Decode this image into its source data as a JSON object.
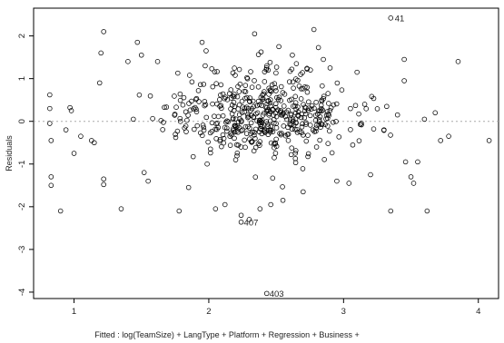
{
  "chart_data": {
    "type": "scatter",
    "xlabel": "Fitted : log(TeamSize) + LangType + Platform + Regression + Business +",
    "ylabel": "Residuals",
    "xlim": [
      0.7,
      4.15
    ],
    "ylim": [
      -4.15,
      2.65
    ],
    "x_ticks": [
      1,
      2,
      3,
      4
    ],
    "y_ticks": [
      2,
      1,
      0,
      -1,
      -2,
      -3,
      -4
    ],
    "reference_line": {
      "y": 0,
      "style": "dotted",
      "color": "#aaaaaa"
    },
    "point_style": {
      "shape": "open-circle",
      "stroke": "#000000"
    },
    "grid": false,
    "annotations": [
      {
        "label": "41",
        "x": 3.36,
        "y": 2.42
      },
      {
        "label": "407",
        "x": 2.24,
        "y": -2.36
      },
      {
        "label": "403",
        "x": 2.43,
        "y": -4.03
      }
    ],
    "seed": 12345,
    "n_points": 560,
    "points": [
      [
        0.82,
        0.62
      ],
      [
        0.82,
        0.3
      ],
      [
        0.82,
        -0.05
      ],
      [
        0.83,
        -0.45
      ],
      [
        0.83,
        -1.3
      ],
      [
        0.83,
        -1.5
      ],
      [
        0.9,
        -2.1
      ],
      [
        0.94,
        -0.2
      ],
      [
        0.97,
        0.32
      ],
      [
        0.98,
        0.25
      ],
      [
        1.0,
        -0.75
      ],
      [
        1.05,
        -0.35
      ],
      [
        1.13,
        -0.45
      ],
      [
        1.15,
        -0.5
      ],
      [
        1.22,
        2.1
      ],
      [
        1.2,
        1.6
      ],
      [
        1.19,
        0.9
      ],
      [
        1.22,
        -1.35
      ],
      [
        1.22,
        -1.48
      ],
      [
        1.35,
        -2.05
      ],
      [
        1.4,
        1.4
      ],
      [
        1.44,
        0.05
      ],
      [
        1.47,
        1.85
      ],
      [
        1.5,
        1.55
      ],
      [
        1.52,
        -1.2
      ],
      [
        1.55,
        -1.4
      ],
      [
        1.62,
        1.4
      ],
      [
        1.78,
        -2.1
      ],
      [
        1.85,
        -1.55
      ],
      [
        1.95,
        1.85
      ],
      [
        1.98,
        1.65
      ],
      [
        2.05,
        -2.05
      ],
      [
        2.12,
        -1.95
      ],
      [
        2.24,
        -2.2
      ],
      [
        2.3,
        -2.3
      ],
      [
        2.34,
        2.05
      ],
      [
        2.38,
        -2.05
      ],
      [
        2.46,
        -1.95
      ],
      [
        2.52,
        1.75
      ],
      [
        2.55,
        -1.85
      ],
      [
        2.62,
        1.55
      ],
      [
        2.65,
        1.35
      ],
      [
        2.7,
        -1.65
      ],
      [
        2.78,
        2.15
      ],
      [
        2.85,
        1.45
      ],
      [
        2.9,
        1.25
      ],
      [
        2.95,
        -1.4
      ],
      [
        3.04,
        -1.45
      ],
      [
        3.1,
        1.15
      ],
      [
        3.2,
        -1.25
      ],
      [
        3.3,
        -0.2
      ],
      [
        3.32,
        0.35
      ],
      [
        3.35,
        -2.1
      ],
      [
        3.4,
        0.15
      ],
      [
        3.45,
        0.95
      ],
      [
        3.45,
        1.45
      ],
      [
        3.46,
        -0.95
      ],
      [
        3.5,
        -1.3
      ],
      [
        3.52,
        -1.45
      ],
      [
        3.55,
        -0.95
      ],
      [
        3.6,
        0.05
      ],
      [
        3.62,
        -2.1
      ],
      [
        3.68,
        0.2
      ],
      [
        3.72,
        -0.45
      ],
      [
        3.85,
        1.4
      ],
      [
        3.78,
        -0.35
      ],
      [
        4.08,
        -0.45
      ],
      [
        3.35,
        2.42
      ],
      [
        2.24,
        -2.36
      ],
      [
        2.43,
        -4.03
      ]
    ]
  }
}
